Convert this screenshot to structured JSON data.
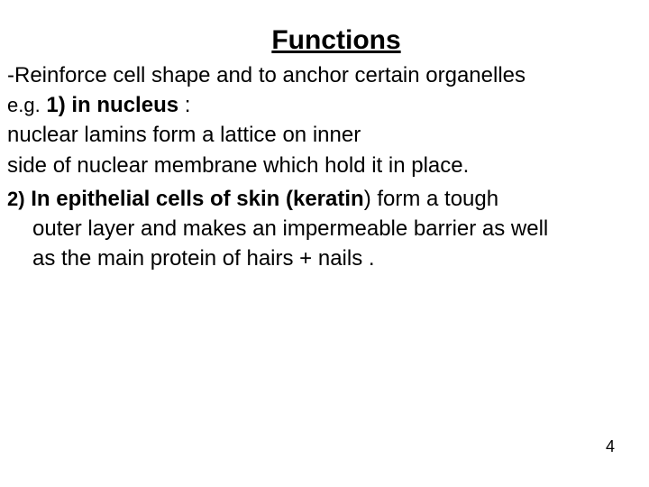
{
  "title": "Functions",
  "l1": "-Reinforce cell shape and to anchor certain organelles",
  "l2_eg": "e.g.",
  "l2_bold": "1) in nucleus",
  "l2_colon": ":",
  "l3": "nuclear lamins form a lattice on inner",
  "l4": "side of nuclear membrane which hold it in place.",
  "l5_num": "2)",
  "l5_bold": "In epithelial cells of skin (keratin",
  "l5_paren": ")",
  "l5_tail": "form a tough",
  "l6": "outer layer and makes an impermeable barrier as well",
  "l7": "as the main protein of hairs + nails .",
  "page": "4",
  "colors": {
    "bg": "#ffffff",
    "text": "#000000"
  }
}
